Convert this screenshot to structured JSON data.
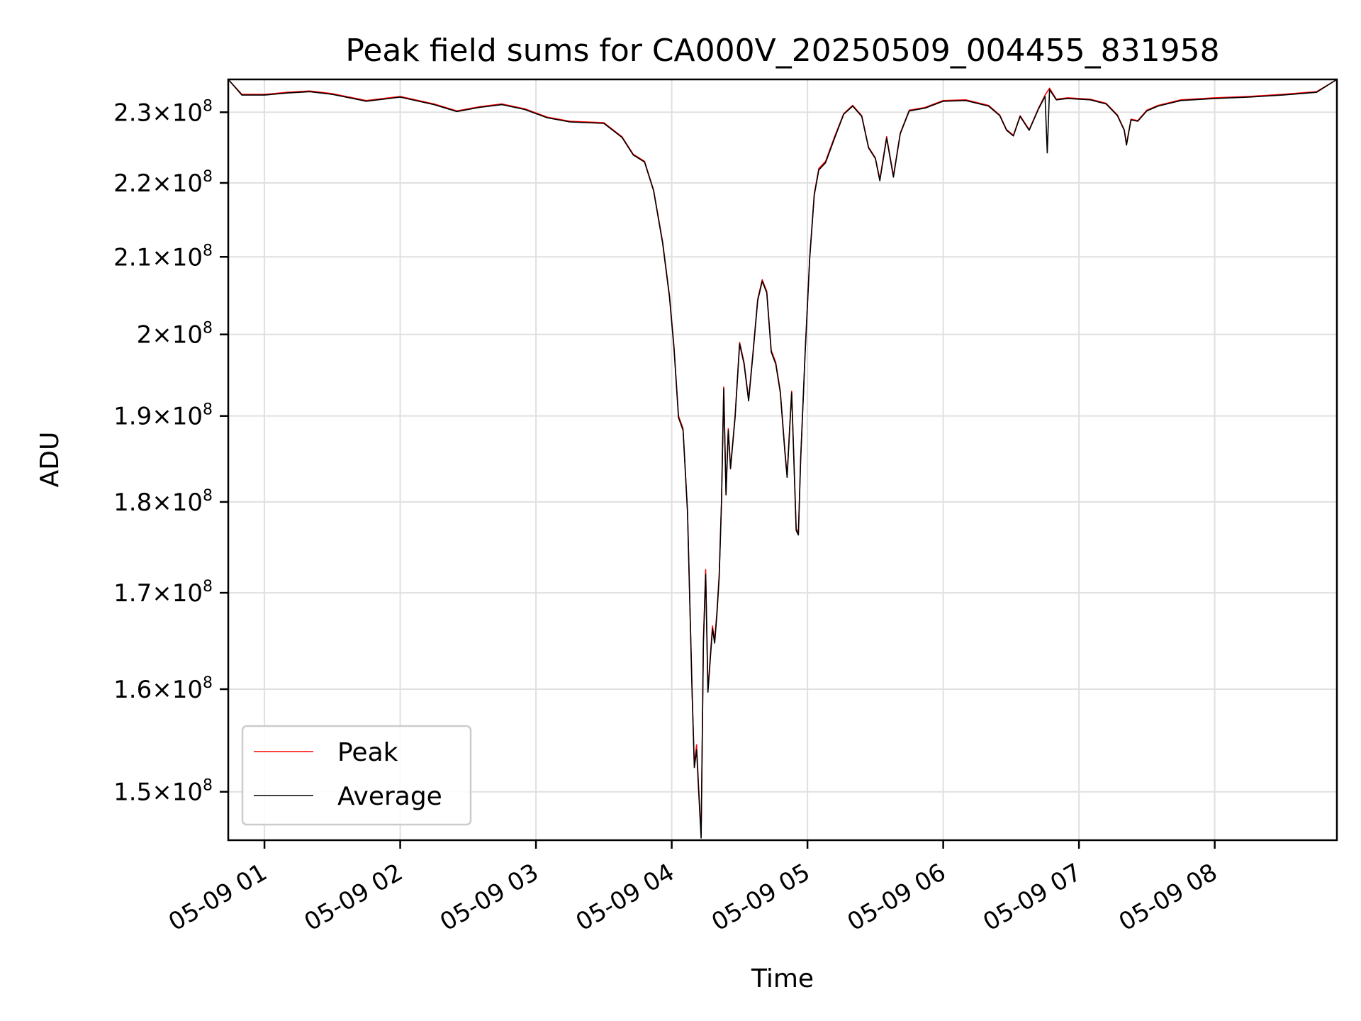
{
  "chart_data": {
    "type": "line",
    "title": "Peak field sums for CA000V_20250509_004455_831958",
    "xlabel": "Time",
    "ylabel": "ADU",
    "grid": true,
    "legend_position": "lower-left",
    "y_scale": "log",
    "xlim": [
      "05-09 00:44",
      "05-09 08:54"
    ],
    "ylim": [
      145500000,
      234800000
    ],
    "x_ticks": [
      "05-09 01",
      "05-09 02",
      "05-09 03",
      "05-09 04",
      "05-09 05",
      "05-09 06",
      "05-09 07",
      "05-09 08"
    ],
    "x_tick_values": [
      "05-09 01:00",
      "05-09 02:00",
      "05-09 03:00",
      "05-09 04:00",
      "05-09 05:00",
      "05-09 06:00",
      "05-09 07:00",
      "05-09 08:00"
    ],
    "y_ticks": [
      {
        "value": 150000000,
        "mantissa": "1.5",
        "base": "10",
        "exp": "8"
      },
      {
        "value": 160000000,
        "mantissa": "1.6",
        "base": "10",
        "exp": "8"
      },
      {
        "value": 170000000,
        "mantissa": "1.7",
        "base": "10",
        "exp": "8"
      },
      {
        "value": 180000000,
        "mantissa": "1.8",
        "base": "10",
        "exp": "8"
      },
      {
        "value": 190000000,
        "mantissa": "1.9",
        "base": "10",
        "exp": "8"
      },
      {
        "value": 200000000,
        "mantissa": "2",
        "base": "10",
        "exp": "8"
      },
      {
        "value": 210000000,
        "mantissa": "2.1",
        "base": "10",
        "exp": "8"
      },
      {
        "value": 220000000,
        "mantissa": "2.2",
        "base": "10",
        "exp": "8"
      },
      {
        "value": 230000000,
        "mantissa": "2.3",
        "base": "10",
        "exp": "8"
      }
    ],
    "series": [
      {
        "name": "Peak",
        "color": "#ff0000",
        "points": [
          [
            "05-09 00:44",
            234800000
          ],
          [
            "05-09 00:50",
            232600000
          ],
          [
            "05-09 01:00",
            232600000
          ],
          [
            "05-09 01:10",
            232900000
          ],
          [
            "05-09 01:20",
            233100000
          ],
          [
            "05-09 01:30",
            232700000
          ],
          [
            "05-09 01:45",
            231700000
          ],
          [
            "05-09 02:00",
            232300000
          ],
          [
            "05-09 02:15",
            231200000
          ],
          [
            "05-09 02:25",
            230200000
          ],
          [
            "05-09 02:35",
            230800000
          ],
          [
            "05-09 02:45",
            231200000
          ],
          [
            "05-09 02:55",
            230500000
          ],
          [
            "05-09 03:05",
            229300000
          ],
          [
            "05-09 03:15",
            228700000
          ],
          [
            "05-09 03:30",
            228500000
          ],
          [
            "05-09 03:38",
            226500000
          ],
          [
            "05-09 03:43",
            224000000
          ],
          [
            "05-09 03:48",
            223000000
          ],
          [
            "05-09 03:52",
            219000000
          ],
          [
            "05-09 03:56",
            212000000
          ],
          [
            "05-09 03:59",
            205000000
          ],
          [
            "05-09 04:01",
            198500000
          ],
          [
            "05-09 04:03",
            190000000
          ],
          [
            "05-09 04:05",
            188500000
          ],
          [
            "05-09 04:07",
            179000000
          ],
          [
            "05-09 04:09",
            160000000
          ],
          [
            "05-09 04:10",
            152500000
          ],
          [
            "05-09 04:11",
            154500000
          ],
          [
            "05-09 04:12",
            150000000
          ],
          [
            "05-09 04:13",
            146000000
          ],
          [
            "05-09 04:14",
            165000000
          ],
          [
            "05-09 04:15",
            172500000
          ],
          [
            "05-09 04:16",
            160000000
          ],
          [
            "05-09 04:18",
            166500000
          ],
          [
            "05-09 04:19",
            165000000
          ],
          [
            "05-09 04:20",
            168000000
          ],
          [
            "05-09 04:21",
            172000000
          ],
          [
            "05-09 04:22",
            180000000
          ],
          [
            "05-09 04:23",
            193500000
          ],
          [
            "05-09 04:24",
            181000000
          ],
          [
            "05-09 04:25",
            188500000
          ],
          [
            "05-09 04:26",
            184000000
          ],
          [
            "05-09 04:28",
            190000000
          ],
          [
            "05-09 04:30",
            199000000
          ],
          [
            "05-09 04:32",
            196500000
          ],
          [
            "05-09 04:34",
            192000000
          ],
          [
            "05-09 04:36",
            198000000
          ],
          [
            "05-09 04:38",
            204500000
          ],
          [
            "05-09 04:40",
            207000000
          ],
          [
            "05-09 04:42",
            205500000
          ],
          [
            "05-09 04:44",
            198000000
          ],
          [
            "05-09 04:46",
            196500000
          ],
          [
            "05-09 04:48",
            193000000
          ],
          [
            "05-09 04:50",
            186000000
          ],
          [
            "05-09 04:51",
            183000000
          ],
          [
            "05-09 04:52",
            188000000
          ],
          [
            "05-09 04:53",
            193000000
          ],
          [
            "05-09 04:55",
            177000000
          ],
          [
            "05-09 04:56",
            176500000
          ],
          [
            "05-09 04:57",
            185000000
          ],
          [
            "05-09 04:59",
            198000000
          ],
          [
            "05-09 05:01",
            210000000
          ],
          [
            "05-09 05:03",
            218500000
          ],
          [
            "05-09 05:05",
            222000000
          ],
          [
            "05-09 05:08",
            223000000
          ],
          [
            "05-09 05:12",
            226500000
          ],
          [
            "05-09 05:16",
            229800000
          ],
          [
            "05-09 05:20",
            231000000
          ],
          [
            "05-09 05:24",
            229500000
          ],
          [
            "05-09 05:27",
            225000000
          ],
          [
            "05-09 05:30",
            223500000
          ],
          [
            "05-09 05:32",
            220500000
          ],
          [
            "05-09 05:35",
            226500000
          ],
          [
            "05-09 05:38",
            221000000
          ],
          [
            "05-09 05:41",
            227000000
          ],
          [
            "05-09 05:45",
            230300000
          ],
          [
            "05-09 05:52",
            230700000
          ],
          [
            "05-09 06:00",
            231700000
          ],
          [
            "05-09 06:10",
            231800000
          ],
          [
            "05-09 06:20",
            231000000
          ],
          [
            "05-09 06:25",
            229600000
          ],
          [
            "05-09 06:28",
            227500000
          ],
          [
            "05-09 06:31",
            226700000
          ],
          [
            "05-09 06:34",
            229500000
          ],
          [
            "05-09 06:38",
            227500000
          ],
          [
            "05-09 06:42",
            230500000
          ],
          [
            "05-09 06:45",
            232500000
          ],
          [
            "05-09 06:47",
            233500000
          ],
          [
            "05-09 06:50",
            231900000
          ],
          [
            "05-09 06:55",
            232100000
          ],
          [
            "05-09 07:05",
            231900000
          ],
          [
            "05-09 07:12",
            231300000
          ],
          [
            "05-09 07:17",
            229600000
          ],
          [
            "05-09 07:20",
            227500000
          ],
          [
            "05-09 07:21",
            225500000
          ],
          [
            "05-09 07:23",
            229000000
          ],
          [
            "05-09 07:26",
            228800000
          ],
          [
            "05-09 07:30",
            230300000
          ],
          [
            "05-09 07:35",
            231000000
          ],
          [
            "05-09 07:45",
            231800000
          ],
          [
            "05-09 08:00",
            232100000
          ],
          [
            "05-09 08:15",
            232300000
          ],
          [
            "05-09 08:30",
            232600000
          ],
          [
            "05-09 08:45",
            233000000
          ],
          [
            "05-09 08:54",
            234800000
          ]
        ]
      },
      {
        "name": "Average",
        "color": "#000000",
        "points": [
          [
            "05-09 00:44",
            234800000
          ],
          [
            "05-09 00:50",
            232500000
          ],
          [
            "05-09 01:00",
            232500000
          ],
          [
            "05-09 01:10",
            232800000
          ],
          [
            "05-09 01:20",
            233000000
          ],
          [
            "05-09 01:30",
            232600000
          ],
          [
            "05-09 01:45",
            231600000
          ],
          [
            "05-09 02:00",
            232200000
          ],
          [
            "05-09 02:15",
            231100000
          ],
          [
            "05-09 02:25",
            230100000
          ],
          [
            "05-09 02:35",
            230700000
          ],
          [
            "05-09 02:45",
            231100000
          ],
          [
            "05-09 02:55",
            230400000
          ],
          [
            "05-09 03:05",
            229200000
          ],
          [
            "05-09 03:15",
            228600000
          ],
          [
            "05-09 03:30",
            228400000
          ],
          [
            "05-09 03:38",
            226400000
          ],
          [
            "05-09 03:43",
            223900000
          ],
          [
            "05-09 03:48",
            222900000
          ],
          [
            "05-09 03:52",
            218900000
          ],
          [
            "05-09 03:56",
            211800000
          ],
          [
            "05-09 03:59",
            204800000
          ],
          [
            "05-09 04:01",
            198300000
          ],
          [
            "05-09 04:03",
            189800000
          ],
          [
            "05-09 04:05",
            188300000
          ],
          [
            "05-09 04:07",
            178800000
          ],
          [
            "05-09 04:09",
            159800000
          ],
          [
            "05-09 04:10",
            152300000
          ],
          [
            "05-09 04:11",
            154000000
          ],
          [
            "05-09 04:12",
            149700000
          ],
          [
            "05-09 04:13",
            145700000
          ],
          [
            "05-09 04:14",
            164700000
          ],
          [
            "05-09 04:15",
            172000000
          ],
          [
            "05-09 04:16",
            159700000
          ],
          [
            "05-09 04:18",
            166200000
          ],
          [
            "05-09 04:19",
            164700000
          ],
          [
            "05-09 04:20",
            167700000
          ],
          [
            "05-09 04:21",
            171700000
          ],
          [
            "05-09 04:22",
            179800000
          ],
          [
            "05-09 04:23",
            193300000
          ],
          [
            "05-09 04:24",
            180800000
          ],
          [
            "05-09 04:25",
            188300000
          ],
          [
            "05-09 04:26",
            183800000
          ],
          [
            "05-09 04:28",
            189800000
          ],
          [
            "05-09 04:30",
            198800000
          ],
          [
            "05-09 04:32",
            196300000
          ],
          [
            "05-09 04:34",
            191800000
          ],
          [
            "05-09 04:36",
            197800000
          ],
          [
            "05-09 04:38",
            204300000
          ],
          [
            "05-09 04:40",
            206800000
          ],
          [
            "05-09 04:42",
            205300000
          ],
          [
            "05-09 04:44",
            197800000
          ],
          [
            "05-09 04:46",
            196300000
          ],
          [
            "05-09 04:48",
            192800000
          ],
          [
            "05-09 04:50",
            185800000
          ],
          [
            "05-09 04:51",
            182800000
          ],
          [
            "05-09 04:52",
            187800000
          ],
          [
            "05-09 04:53",
            192800000
          ],
          [
            "05-09 04:55",
            176800000
          ],
          [
            "05-09 04:56",
            176300000
          ],
          [
            "05-09 04:57",
            184800000
          ],
          [
            "05-09 04:59",
            197800000
          ],
          [
            "05-09 05:01",
            209800000
          ],
          [
            "05-09 05:03",
            218300000
          ],
          [
            "05-09 05:05",
            221800000
          ],
          [
            "05-09 05:08",
            222800000
          ],
          [
            "05-09 05:12",
            226300000
          ],
          [
            "05-09 05:16",
            229700000
          ],
          [
            "05-09 05:20",
            230900000
          ],
          [
            "05-09 05:24",
            229400000
          ],
          [
            "05-09 05:27",
            224900000
          ],
          [
            "05-09 05:30",
            223400000
          ],
          [
            "05-09 05:32",
            220300000
          ],
          [
            "05-09 05:35",
            226300000
          ],
          [
            "05-09 05:38",
            220800000
          ],
          [
            "05-09 05:41",
            226900000
          ],
          [
            "05-09 05:45",
            230200000
          ],
          [
            "05-09 05:52",
            230600000
          ],
          [
            "05-09 06:00",
            231600000
          ],
          [
            "05-09 06:10",
            231700000
          ],
          [
            "05-09 06:20",
            230900000
          ],
          [
            "05-09 06:25",
            229500000
          ],
          [
            "05-09 06:28",
            227400000
          ],
          [
            "05-09 06:31",
            226600000
          ],
          [
            "05-09 06:34",
            229400000
          ],
          [
            "05-09 06:38",
            227400000
          ],
          [
            "05-09 06:42",
            230400000
          ],
          [
            "05-09 06:45",
            232300000
          ],
          [
            "05-09 06:46",
            224200000
          ],
          [
            "05-09 06:47",
            233300000
          ],
          [
            "05-09 06:50",
            231800000
          ],
          [
            "05-09 06:55",
            232000000
          ],
          [
            "05-09 07:05",
            231800000
          ],
          [
            "05-09 07:12",
            231200000
          ],
          [
            "05-09 07:17",
            229500000
          ],
          [
            "05-09 07:20",
            227400000
          ],
          [
            "05-09 07:21",
            225300000
          ],
          [
            "05-09 07:23",
            228900000
          ],
          [
            "05-09 07:26",
            228700000
          ],
          [
            "05-09 07:30",
            230200000
          ],
          [
            "05-09 07:35",
            230900000
          ],
          [
            "05-09 07:45",
            231700000
          ],
          [
            "05-09 08:00",
            232000000
          ],
          [
            "05-09 08:15",
            232200000
          ],
          [
            "05-09 08:30",
            232500000
          ],
          [
            "05-09 08:45",
            232900000
          ],
          [
            "05-09 08:54",
            234800000
          ]
        ]
      }
    ]
  }
}
